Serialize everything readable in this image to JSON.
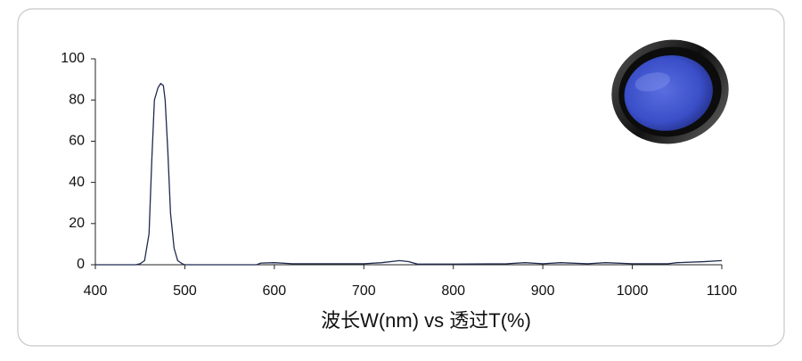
{
  "chart_data": {
    "type": "line",
    "x_label": "波长W(nm) vs 透过T(%)",
    "x": [
      400,
      445,
      450,
      455,
      460,
      463,
      466,
      470,
      473,
      476,
      478,
      481,
      484,
      488,
      492,
      497,
      500,
      580,
      585,
      600,
      620,
      640,
      680,
      700,
      720,
      740,
      750,
      760,
      790,
      860,
      880,
      900,
      920,
      950,
      970,
      1000,
      1040,
      1050,
      1080,
      1100
    ],
    "values": [
      0,
      0,
      0.5,
      2,
      15,
      50,
      80,
      86,
      88,
      87,
      80,
      55,
      25,
      8,
      2,
      0.5,
      0,
      0,
      0.8,
      1,
      0.5,
      0.5,
      0.5,
      0.5,
      1,
      2,
      1.5,
      0.3,
      0.3,
      0.5,
      1,
      0.5,
      1,
      0.5,
      1,
      0.5,
      0.5,
      1,
      1.5,
      2
    ],
    "color": "#1f2a4d",
    "xlim": [
      400,
      1100
    ],
    "ylim": [
      0,
      100
    ],
    "xticks": [
      400,
      500,
      600,
      700,
      800,
      900,
      1000,
      1100
    ],
    "yticks": [
      0,
      20,
      40,
      60,
      80,
      100
    ]
  }
}
